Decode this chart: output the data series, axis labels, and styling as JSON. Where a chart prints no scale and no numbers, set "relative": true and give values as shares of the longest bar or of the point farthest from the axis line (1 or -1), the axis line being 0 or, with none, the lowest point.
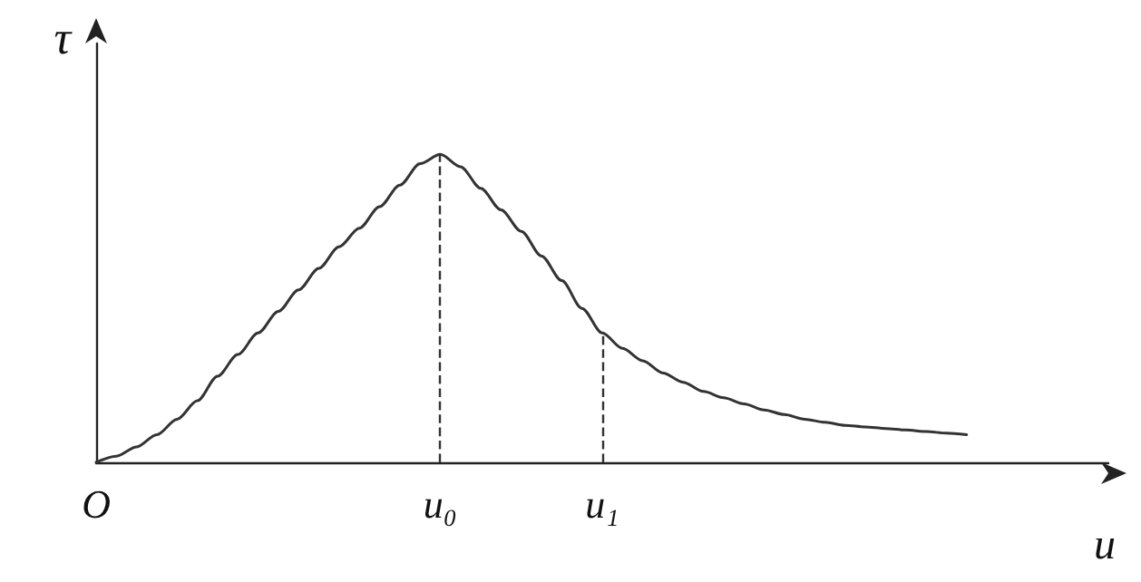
{
  "chart_data": {
    "type": "line",
    "relative": true,
    "ylabel": "τ",
    "xlabel": "u",
    "categories": [
      "O",
      null,
      null,
      null,
      null,
      null,
      null,
      null,
      null,
      null,
      null,
      null,
      null,
      null,
      null,
      null,
      null,
      "u₀",
      null,
      null,
      null,
      null,
      null,
      null,
      null,
      "u₁",
      null,
      null,
      null,
      null,
      null,
      null,
      null,
      null,
      null,
      null,
      null,
      null,
      null,
      null,
      null,
      null,
      null,
      null,
      null,
      null,
      null,
      null,
      null,
      null,
      null
    ],
    "series": [
      {
        "color": "#333333",
        "values": [
          0,
          0.02,
          0.05,
          0.09,
          0.14,
          0.2,
          0.28,
          0.35,
          0.42,
          0.49,
          0.56,
          0.63,
          0.7,
          0.76,
          0.83,
          0.9,
          0.97,
          1,
          0.96,
          0.89,
          0.82,
          0.75,
          0.67,
          0.59,
          0.5,
          0.42,
          0.37,
          0.33,
          0.29,
          0.26,
          0.23,
          0.21,
          0.19,
          0.17,
          0.155,
          0.14,
          0.13,
          0.12,
          0.115,
          0.11,
          0.105,
          0.1,
          0.095,
          0.09,
          null,
          null,
          null,
          null,
          null,
          null,
          null
        ]
      }
    ],
    "ref_lines": [
      {
        "axis": "x",
        "value": "u₀",
        "line_style": "dashed"
      },
      {
        "axis": "x",
        "value": "u₁",
        "line_style": "dashed"
      }
    ],
    "grid": false,
    "marker": "none",
    "line_style": "solid"
  }
}
